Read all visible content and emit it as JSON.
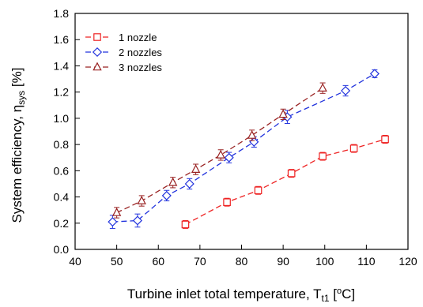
{
  "chart_data": {
    "type": "line",
    "title": "",
    "xlabel": {
      "text": "Turbine inlet total temperature, T",
      "sub": "t1",
      "open": " [",
      "sup_o": "o",
      "unit": "C]"
    },
    "ylabel": {
      "text": "System efficiency, η",
      "sub": "sys",
      "unit": " [%]"
    },
    "xlim": [
      40,
      120
    ],
    "ylim": [
      0.0,
      1.8
    ],
    "xticks": [
      "40",
      "50",
      "60",
      "70",
      "80",
      "90",
      "100",
      "110",
      "120"
    ],
    "yticks": [
      "0.0",
      "0.2",
      "0.4",
      "0.6",
      "0.8",
      "1.0",
      "1.2",
      "1.4",
      "1.6",
      "1.8"
    ],
    "grid": false,
    "legend_position": "top-left",
    "series": [
      {
        "name": "1 nozzle",
        "color": "#ee2222",
        "marker": "square",
        "x": [
          66.5,
          76.5,
          84,
          92,
          99.5,
          107,
          114.5
        ],
        "y": [
          0.19,
          0.36,
          0.45,
          0.58,
          0.71,
          0.77,
          0.84
        ],
        "err": [
          0.03,
          0.03,
          0.03,
          0.03,
          0.03,
          0.03,
          0.03
        ]
      },
      {
        "name": "2 nozzles",
        "color": "#2233dd",
        "marker": "diamond",
        "x": [
          49,
          55,
          62,
          67.5,
          77,
          83,
          91,
          105,
          112
        ],
        "y": [
          0.21,
          0.22,
          0.41,
          0.5,
          0.7,
          0.82,
          1.01,
          1.21,
          1.34
        ],
        "err": [
          0.05,
          0.05,
          0.04,
          0.04,
          0.04,
          0.04,
          0.05,
          0.04,
          0.03
        ]
      },
      {
        "name": "3 nozzles",
        "color": "#992222",
        "marker": "triangle",
        "x": [
          50,
          56,
          63.5,
          69,
          75,
          82.5,
          90,
          99.5
        ],
        "y": [
          0.28,
          0.37,
          0.51,
          0.61,
          0.72,
          0.87,
          1.03,
          1.23
        ],
        "err": [
          0.04,
          0.04,
          0.04,
          0.04,
          0.04,
          0.04,
          0.04,
          0.04
        ]
      }
    ]
  }
}
